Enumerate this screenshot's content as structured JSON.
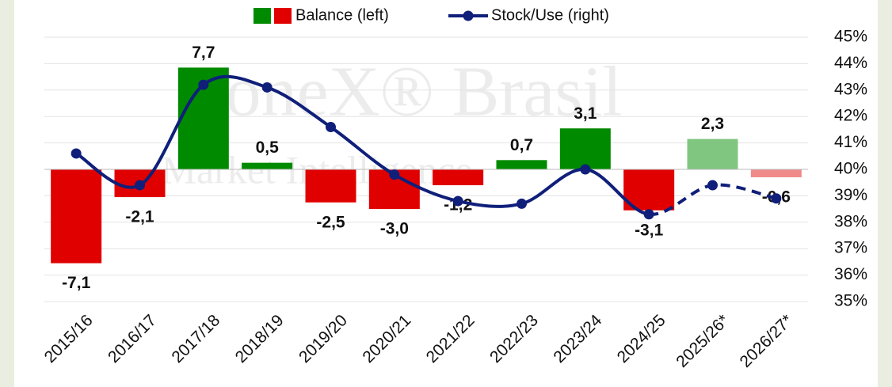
{
  "chart_data": {
    "type": "bar",
    "watermark": [
      "SoneX® Brasil",
      "Market Intelligence"
    ],
    "categories": [
      "2015/16",
      "2016/17",
      "2017/18",
      "2018/19",
      "2019/20",
      "2020/21",
      "2021/22",
      "2022/23",
      "2023/24",
      "2024/25",
      "2025/26*",
      "2026/27*"
    ],
    "series": [
      {
        "name": "Balance (left)",
        "type": "bar",
        "legend_colors": [
          "#008a00",
          "#e00000"
        ],
        "colors": [
          "#e00000",
          "#e00000",
          "#008a00",
          "#008a00",
          "#e00000",
          "#e00000",
          "#e00000",
          "#008a00",
          "#008a00",
          "#e00000",
          "#80c680",
          "#f08a8a"
        ],
        "values": [
          -7.1,
          -2.1,
          7.7,
          0.5,
          -2.5,
          -3.0,
          -1.2,
          0.7,
          3.1,
          -3.1,
          2.3,
          -0.6
        ],
        "value_labels": [
          "-7,1",
          "-2,1",
          "7,7",
          "0,5",
          "-2,5",
          "-3,0",
          "-1,2",
          "0,7",
          "3,1",
          "-3,1",
          "2,3",
          "-0,6"
        ]
      },
      {
        "name": "Stock/Use (right)",
        "type": "line",
        "axis": "y2",
        "color": "#0f1f7a",
        "dashed_from": 9,
        "values": [
          40.6,
          39.4,
          43.2,
          43.1,
          41.6,
          39.8,
          38.8,
          38.7,
          40.0,
          38.3,
          39.4,
          38.9
        ]
      }
    ],
    "ylim": [
      -10,
      10
    ],
    "y2lim": [
      35,
      45
    ],
    "y2ticks": [
      {
        "value": 35,
        "label": "35%"
      },
      {
        "value": 36,
        "label": "36%"
      },
      {
        "value": 37,
        "label": "37%"
      },
      {
        "value": 38,
        "label": "38%"
      },
      {
        "value": 39,
        "label": "39%"
      },
      {
        "value": 40,
        "label": "40%"
      },
      {
        "value": 41,
        "label": "41%"
      },
      {
        "value": 42,
        "label": "42%"
      },
      {
        "value": 43,
        "label": "43%"
      },
      {
        "value": 44,
        "label": "44%"
      },
      {
        "value": 45,
        "label": "45%"
      }
    ],
    "grid": true
  }
}
